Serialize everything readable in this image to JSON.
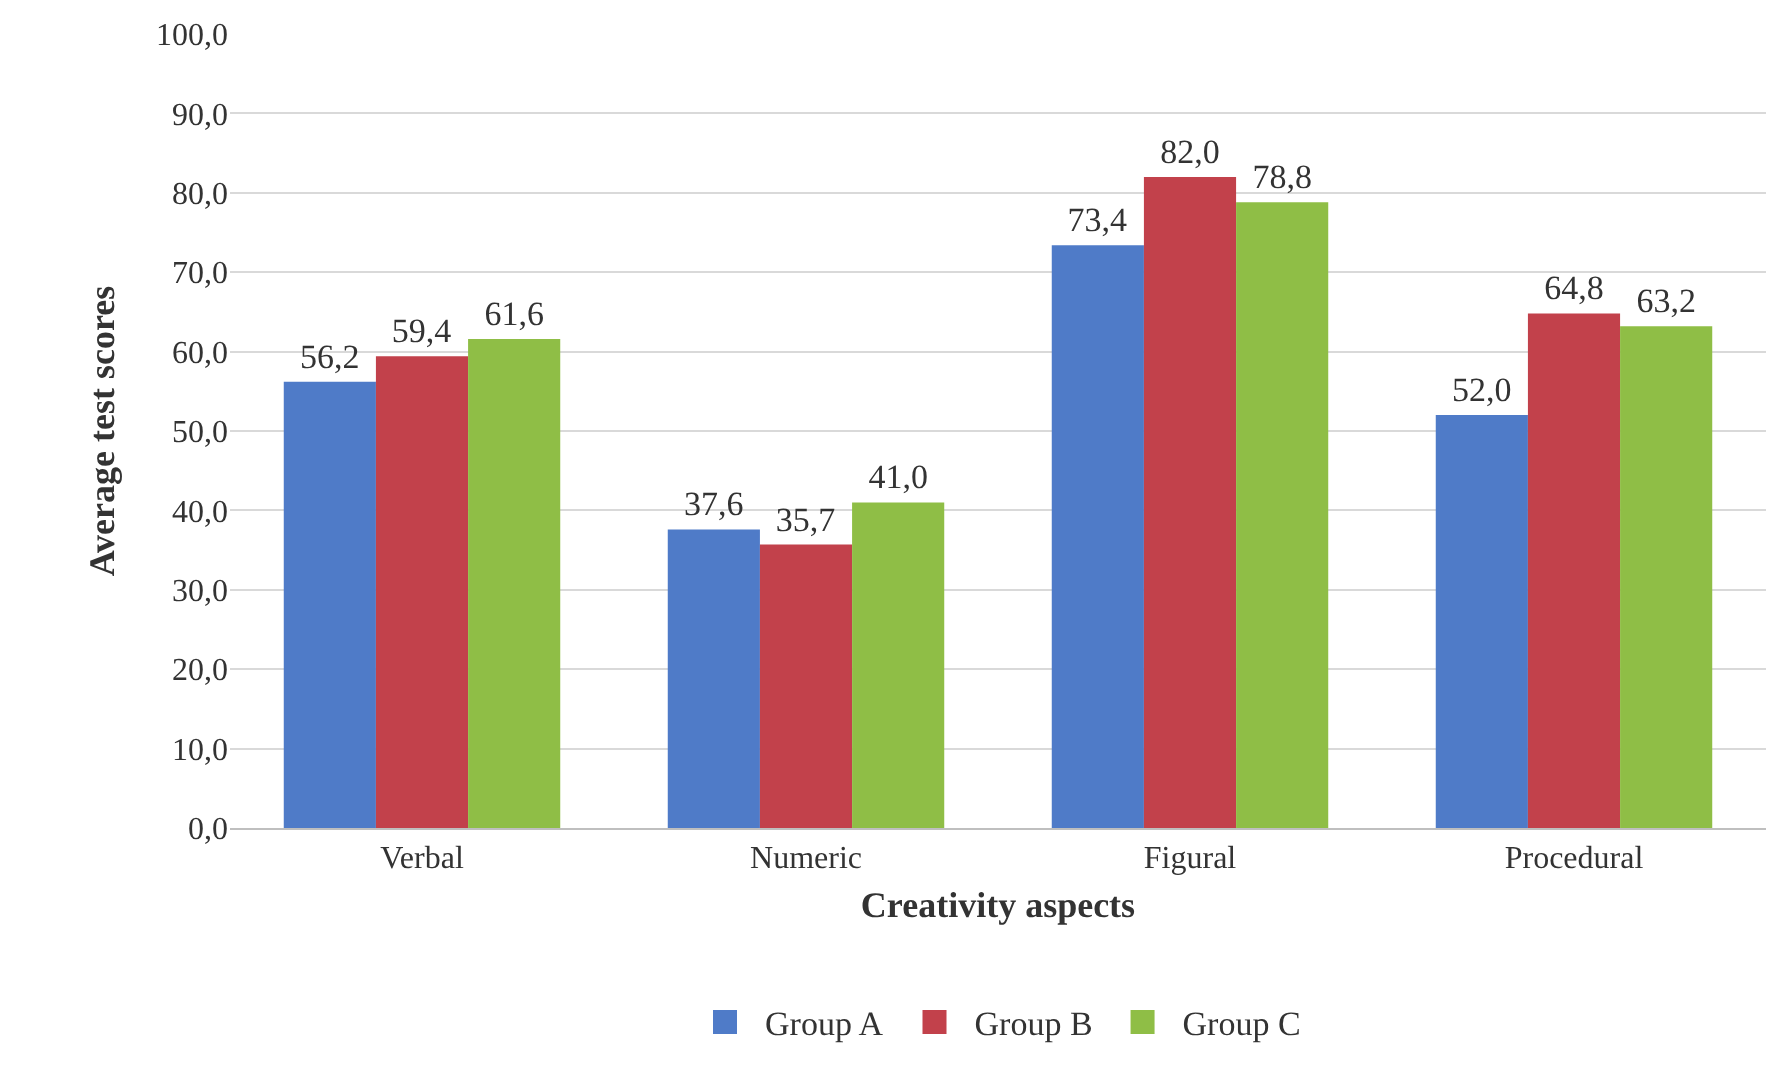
{
  "chart_data": {
    "type": "bar",
    "xlabel": "Creativity aspects",
    "ylabel": "Average test scores",
    "categories": [
      "Verbal",
      "Numeric",
      "Figural",
      "Procedural"
    ],
    "series": [
      {
        "name": "Group A",
        "color": "#4f7bc8",
        "values": [
          56.2,
          37.6,
          73.4,
          52.0
        ],
        "value_labels": [
          "56,2",
          "37,6",
          "73,4",
          "52,0"
        ]
      },
      {
        "name": "Group B",
        "color": "#c2414b",
        "values": [
          59.4,
          35.7,
          82.0,
          64.8
        ],
        "value_labels": [
          "59,4",
          "35,7",
          "82,0",
          "64,8"
        ]
      },
      {
        "name": "Group C",
        "color": "#8fbe46",
        "values": [
          61.6,
          41.0,
          78.8,
          63.2
        ],
        "value_labels": [
          "61,6",
          "41,0",
          "78,8",
          "63,2"
        ]
      }
    ],
    "ylim": [
      0,
      100
    ],
    "yticks": [
      {
        "value": 0,
        "label": "0,0"
      },
      {
        "value": 10,
        "label": "10,0"
      },
      {
        "value": 20,
        "label": "20,0"
      },
      {
        "value": 30,
        "label": "30,0"
      },
      {
        "value": 40,
        "label": "40,0"
      },
      {
        "value": 50,
        "label": "50,0"
      },
      {
        "value": 60,
        "label": "60,0"
      },
      {
        "value": 70,
        "label": "70,0"
      },
      {
        "value": 80,
        "label": "80,0"
      },
      {
        "value": 90,
        "label": "90,0"
      },
      {
        "value": 100,
        "label": "100,0"
      }
    ],
    "grid": "y",
    "legend": "bottom"
  }
}
